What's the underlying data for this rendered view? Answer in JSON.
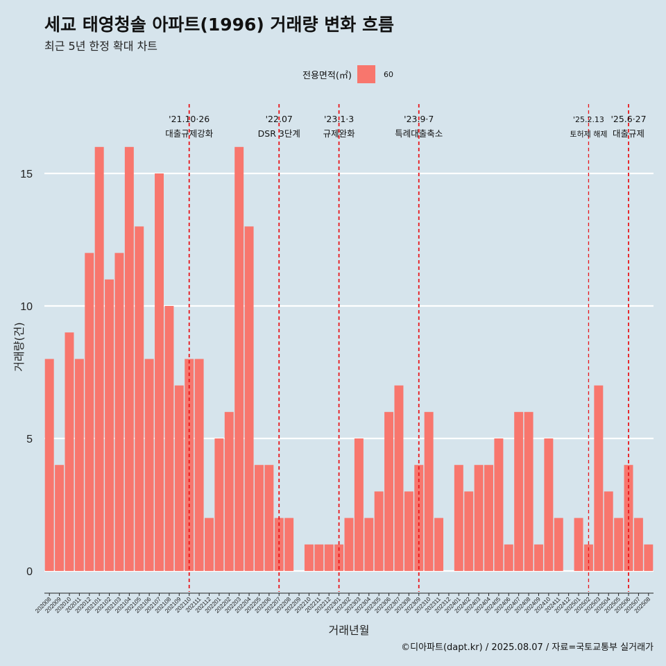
{
  "title": "세교 태영청솔 아파트(1996) 거래량 변화 흐름",
  "subtitle": "최근 5년 한정 확대 차트",
  "legend": {
    "title": "전용면적(㎡)",
    "items": [
      {
        "label": "60",
        "color": "#f8766d"
      }
    ]
  },
  "caption": "©디아파트(dapt.kr) / 2025.08.07 / 자료=국토교통부 실거래가",
  "colors": {
    "background": "#d6e4ec",
    "bar": "#f8766d",
    "gridline": "#ffffff",
    "event_line": "#e8161b"
  },
  "chart_data": {
    "type": "bar",
    "xlabel": "거래년월",
    "ylabel": "거래량(건)",
    "ylim": [
      0,
      16
    ],
    "yticks": [
      0,
      5,
      10,
      15
    ],
    "grid": true,
    "legend_position": "top",
    "categories": [
      "202008",
      "202009",
      "202010",
      "202011",
      "202012",
      "202101",
      "202102",
      "202103",
      "202104",
      "202105",
      "202106",
      "202107",
      "202108",
      "202109",
      "202110",
      "202111",
      "202112",
      "202201",
      "202202",
      "202203",
      "202204",
      "202205",
      "202206",
      "202207",
      "202208",
      "202209",
      "202210",
      "202211",
      "202212",
      "202301",
      "202302",
      "202303",
      "202304",
      "202305",
      "202306",
      "202307",
      "202308",
      "202309",
      "202310",
      "202311",
      "202312",
      "202401",
      "202402",
      "202403",
      "202404",
      "202405",
      "202406",
      "202407",
      "202408",
      "202409",
      "202410",
      "202411",
      "202412",
      "202501",
      "202502",
      "202503",
      "202504",
      "202505",
      "202506",
      "202507",
      "202508"
    ],
    "series": [
      {
        "name": "60",
        "values": [
          8,
          4,
          9,
          8,
          12,
          16,
          11,
          12,
          16,
          13,
          8,
          15,
          10,
          7,
          8,
          8,
          2,
          5,
          6,
          16,
          13,
          4,
          4,
          2,
          2,
          0,
          1,
          1,
          1,
          1,
          2,
          5,
          2,
          3,
          6,
          7,
          3,
          4,
          6,
          2,
          0,
          4,
          3,
          4,
          4,
          5,
          1,
          6,
          6,
          1,
          5,
          2,
          0,
          2,
          1,
          7,
          3,
          2,
          4,
          2,
          1
        ]
      }
    ],
    "annotations": [
      {
        "at": "202110",
        "date": "'21.10·26",
        "text": "대출규제강화"
      },
      {
        "at": "202207",
        "date": "'22.07",
        "text": "DSR 3단계"
      },
      {
        "at": "202301",
        "date": "'23.1·3",
        "text": "규제완화"
      },
      {
        "at": "202309",
        "date": "'23.9·7",
        "text": "특례대출축소"
      },
      {
        "at": "202502",
        "date": "'25.2.13",
        "text": "토허제 해제"
      },
      {
        "at": "202506",
        "date": "'25.6·27",
        "text": "대출규제"
      }
    ]
  }
}
